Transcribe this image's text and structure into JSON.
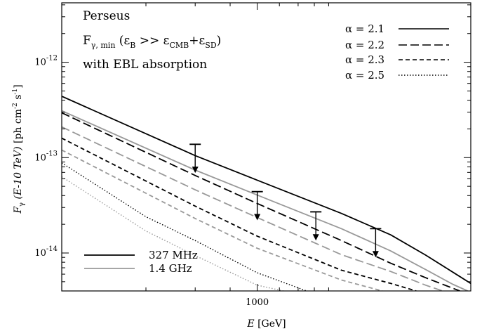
{
  "chart_data": {
    "type": "line",
    "xscale": "log",
    "yscale": "log",
    "xlim": [
      200,
      5800
    ],
    "ylim": [
      4e-15,
      4.2e-12
    ],
    "xlabel_var": "E",
    "xlabel_unit": "[GeV]",
    "ylabel_var": "F",
    "ylabel_sub": "γ",
    "ylabel_arg": "(E-10 TeV)",
    "ylabel_unit": "[ph cm",
    "ylabel_exp1": "-2",
    "ylabel_mid": " s",
    "ylabel_exp2": "-1",
    "ylabel_end": "]",
    "x_ticks": [
      {
        "value": 1000,
        "label": "1000"
      }
    ],
    "y_ticks": [
      {
        "value": 1e-14,
        "base": "10",
        "exp": "-14"
      },
      {
        "value": 1e-13,
        "base": "10",
        "exp": "-13"
      },
      {
        "value": 1e-12,
        "base": "10",
        "exp": "-12"
      }
    ],
    "annotation": {
      "line1": "Perseus",
      "line2_main": "F",
      "line2_sub": "γ, min",
      "line2_paren_open": " (ε",
      "line2_B": "B",
      "line2_gg": " >> ε",
      "line2_CMB": "CMB",
      "line2_plus": "+ε",
      "line2_SD": "SD",
      "line2_close": ")",
      "line3": "with EBL absorption"
    },
    "legend_alpha": [
      {
        "label": "α = 2.1",
        "dash": "solid"
      },
      {
        "label": "α = 2.2",
        "dash": "long-dash"
      },
      {
        "label": "α = 2.3",
        "dash": "short-dash"
      },
      {
        "label": "α = 2.5",
        "dash": "dotted"
      }
    ],
    "legend_freq": [
      {
        "label": "327 MHz",
        "color": "#000000"
      },
      {
        "label": "1.4 GHz",
        "color": "#999999"
      }
    ],
    "series": [
      {
        "alpha": 2.1,
        "freq": "327 MHz",
        "color": "#000000",
        "dash": "solid",
        "x": [
          200,
          600,
          1000,
          2000,
          3000,
          4000,
          5000,
          5800
        ],
        "y": [
          4.4e-13,
          1.05e-13,
          5.8e-14,
          2.6e-14,
          1.55e-14,
          9.5e-15,
          6.3e-15,
          4.8e-15
        ]
      },
      {
        "alpha": 2.1,
        "freq": "1.4 GHz",
        "color": "#999999",
        "dash": "solid",
        "x": [
          200,
          600,
          1000,
          2000,
          3000,
          4000,
          5000,
          5650
        ],
        "y": [
          3.1e-13,
          7.4e-14,
          4.05e-14,
          1.8e-14,
          1.05e-14,
          6.7e-15,
          4.7e-15,
          4e-15
        ]
      },
      {
        "alpha": 2.2,
        "freq": "327 MHz",
        "color": "#000000",
        "dash": "long-dash",
        "x": [
          200,
          600,
          1000,
          2000,
          3000,
          4000,
          5300
        ],
        "y": [
          2.95e-13,
          6.5e-14,
          3.3e-14,
          1.35e-14,
          7.8e-15,
          5.5e-15,
          4e-15
        ]
      },
      {
        "alpha": 2.2,
        "freq": "1.4 GHz",
        "color": "#999999",
        "dash": "long-dash",
        "x": [
          200,
          600,
          1000,
          2000,
          3000,
          4000,
          4600
        ],
        "y": [
          2.1e-13,
          4.6e-14,
          2.35e-14,
          9.6e-15,
          6.4e-15,
          4.6e-15,
          4e-15
        ]
      },
      {
        "alpha": 2.3,
        "freq": "327 MHz",
        "color": "#000000",
        "dash": "short-dash",
        "x": [
          200,
          600,
          1000,
          2000,
          3000,
          3700
        ],
        "y": [
          1.6e-13,
          3.1e-14,
          1.5e-14,
          6.6e-15,
          4.8e-15,
          4e-15
        ]
      },
      {
        "alpha": 2.3,
        "freq": "1.4 GHz",
        "color": "#999999",
        "dash": "short-dash",
        "x": [
          200,
          600,
          1000,
          2000,
          2800
        ],
        "y": [
          1.2e-13,
          2.3e-14,
          1.12e-14,
          5.2e-15,
          4e-15
        ]
      },
      {
        "alpha": 2.5,
        "freq": "327 MHz",
        "color": "#000000",
        "dash": "dotted",
        "x": [
          200,
          400,
          600,
          1000,
          1500
        ],
        "y": [
          8.8e-14,
          2.4e-14,
          1.35e-14,
          6.2e-15,
          4e-15
        ]
      },
      {
        "alpha": 2.5,
        "freq": "1.4 GHz",
        "color": "#999999",
        "dash": "dotted",
        "x": [
          200,
          400,
          600,
          1000,
          1240
        ],
        "y": [
          6.3e-14,
          1.7e-14,
          9.4e-15,
          4.6e-15,
          4e-15
        ]
      }
    ],
    "upper_limits": [
      {
        "x": 600,
        "y": 1.38e-13,
        "arrow_to": 6.9e-14
      },
      {
        "x": 1000,
        "y": 4.4e-14,
        "arrow_to": 2.2e-14
      },
      {
        "x": 1620,
        "y": 2.7e-14,
        "arrow_to": 1.35e-14
      },
      {
        "x": 2650,
        "y": 1.8e-14,
        "arrow_to": 9e-15
      }
    ]
  }
}
